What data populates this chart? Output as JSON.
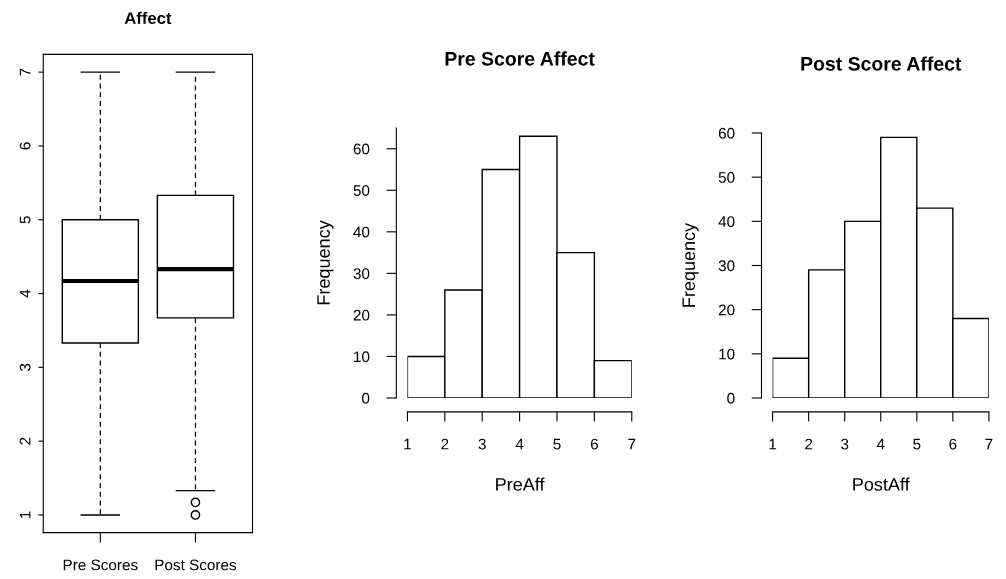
{
  "chart_data": [
    {
      "type": "box",
      "title": "Affect",
      "categories": [
        "Pre Scores",
        "Post Scores"
      ],
      "boxes": [
        {
          "low": 1,
          "q1": 3.33,
          "median": 4.17,
          "q3": 5,
          "high": 7
        },
        {
          "low": 1.33,
          "q1": 3.67,
          "median": 4.33,
          "q3": 5.33,
          "high": 7,
          "outliers": [
            1.17,
            1
          ]
        }
      ],
      "ylim": [
        0.76,
        7.24
      ],
      "yticks": [
        1,
        2,
        3,
        4,
        5,
        6,
        7
      ]
    },
    {
      "type": "histogram",
      "title": "Pre Score Affect",
      "xlabel": "PreAff",
      "ylabel": "Frequency",
      "color": "#ffffff",
      "bins": [
        1,
        2,
        3,
        4,
        5,
        6,
        7
      ],
      "values": [
        10,
        26,
        55,
        63,
        35,
        9
      ],
      "xlim": [
        1,
        7
      ],
      "xticks": [
        1,
        2,
        3,
        4,
        5,
        6,
        7
      ],
      "ylim": [
        0,
        65
      ],
      "yticks": [
        0,
        10,
        20,
        30,
        40,
        50,
        60
      ]
    },
    {
      "type": "histogram",
      "title": "Post Score Affect",
      "xlabel": "PostAff",
      "ylabel": "Frequency",
      "color": "#ffffff",
      "bins": [
        1,
        2,
        3,
        4,
        5,
        6,
        7
      ],
      "values": [
        9,
        29,
        40,
        59,
        43,
        18
      ],
      "xlim": [
        1,
        7
      ],
      "xticks": [
        1,
        2,
        3,
        4,
        5,
        6,
        7
      ],
      "ylim": [
        0,
        60
      ],
      "yticks": [
        0,
        10,
        20,
        30,
        40,
        50,
        60
      ]
    }
  ]
}
